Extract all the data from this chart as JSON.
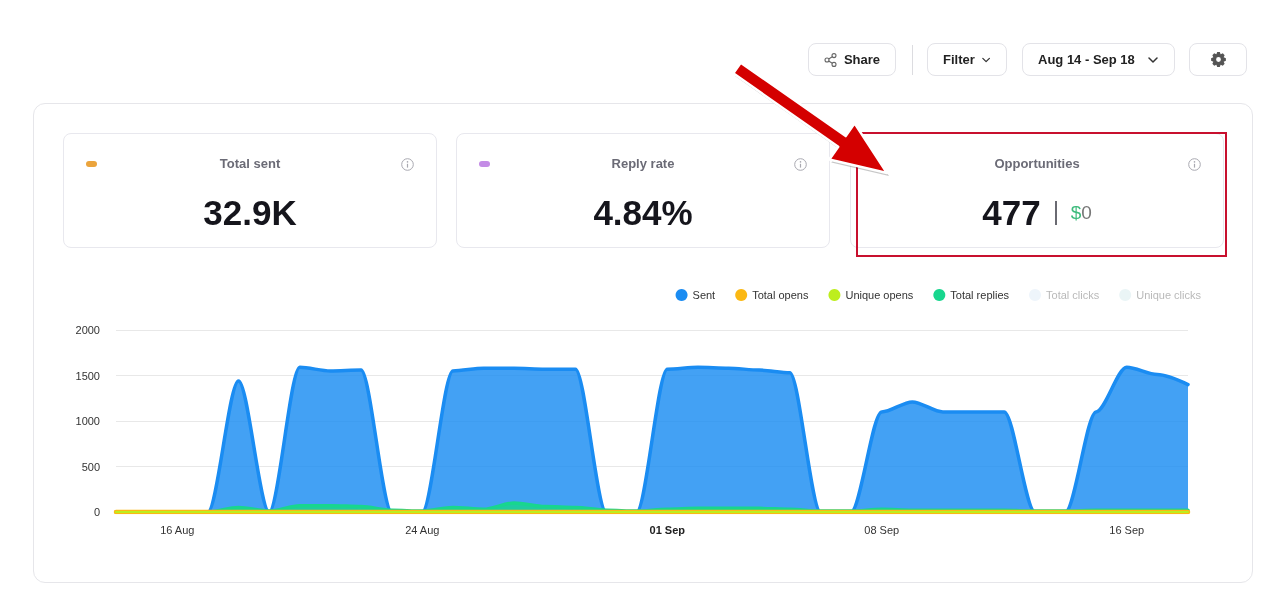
{
  "chart_data": [
    {
      "type": "other",
      "annotations": [
        "Share",
        "Filter",
        "Aug 14 - Sep 18"
      ]
    },
    {
      "type": "other",
      "title": "Total sent",
      "annotations": [
        "32.9K"
      ]
    },
    {
      "type": "other",
      "title": "Reply rate",
      "annotations": [
        "4.84%"
      ]
    },
    {
      "type": "other",
      "title": "Opportunities",
      "annotations": [
        "477",
        "$0"
      ]
    },
    {
      "type": "area",
      "x": [
        "--08-14",
        "--08-15",
        "--08-16",
        "--08-17",
        "--08-18",
        "--08-19",
        "--08-20",
        "--08-21",
        "--08-22",
        "--08-23",
        "--08-24",
        "--08-25",
        "--08-26",
        "--08-27",
        "--08-28",
        "--08-29",
        "--08-30",
        "--08-31",
        "--09-01",
        "--09-02",
        "--09-03",
        "--09-04",
        "--09-05",
        "--09-06",
        "--09-07",
        "--09-08",
        "--09-09",
        "--09-10",
        "--09-11",
        "--09-12",
        "--09-13",
        "--09-14",
        "--09-15",
        "--09-16",
        "--09-17",
        "--09-18"
      ],
      "series": [
        {
          "name": "Sent",
          "color": "#1a8cf2",
          "values": [
            0,
            0,
            0,
            0,
            1440,
            0,
            1590,
            1550,
            1560,
            0,
            0,
            1550,
            1580,
            1580,
            1570,
            1570,
            0,
            0,
            1570,
            1590,
            1580,
            1560,
            1530,
            0,
            0,
            1100,
            1210,
            1100,
            1100,
            1100,
            0,
            0,
            1100,
            1590,
            1510,
            1400
          ]
        },
        {
          "name": "Total opens",
          "type": "line",
          "color": "#fbb813",
          "values": [
            0,
            0,
            0,
            0,
            0,
            0,
            0,
            0,
            0,
            0,
            0,
            0,
            0,
            0,
            0,
            0,
            0,
            0,
            0,
            0,
            0,
            0,
            0,
            0,
            0,
            0,
            0,
            0,
            0,
            0,
            0,
            0,
            0,
            0,
            0,
            0
          ]
        },
        {
          "name": "Unique opens",
          "type": "line",
          "color": "#bdee1e",
          "values": [
            0,
            0,
            0,
            0,
            0,
            0,
            0,
            0,
            0,
            0,
            0,
            0,
            0,
            0,
            0,
            0,
            0,
            0,
            0,
            0,
            0,
            0,
            0,
            0,
            0,
            0,
            0,
            0,
            0,
            0,
            0,
            0,
            0,
            0,
            0,
            0
          ]
        },
        {
          "name": "Total replies",
          "color": "#18d68e",
          "values": [
            0,
            0,
            0,
            0,
            50,
            10,
            70,
            70,
            60,
            20,
            10,
            50,
            30,
            100,
            60,
            50,
            20,
            10,
            30,
            40,
            40,
            40,
            30,
            10,
            10,
            30,
            20,
            20,
            20,
            20,
            10,
            10,
            20,
            20,
            20,
            20
          ]
        },
        {
          "name": "Total clicks",
          "color": "#eef5fb",
          "values": [
            null,
            null,
            null,
            null,
            null,
            null,
            null,
            null,
            null,
            null,
            null,
            null,
            null,
            null,
            null,
            null,
            null,
            null,
            null,
            null,
            null,
            null,
            null,
            null,
            null,
            null,
            null,
            null,
            null,
            null,
            null,
            null,
            null,
            null,
            null,
            null
          ]
        },
        {
          "name": "Unique clicks",
          "color": "#eaf5f6",
          "values": [
            null,
            null,
            null,
            null,
            null,
            null,
            null,
            null,
            null,
            null,
            null,
            null,
            null,
            null,
            null,
            null,
            null,
            null,
            null,
            null,
            null,
            null,
            null,
            null,
            null,
            null,
            null,
            null,
            null,
            null,
            null,
            null,
            null,
            null,
            null,
            null
          ]
        }
      ],
      "xlim": [
        "--08-14",
        "--09-18"
      ],
      "xticks": [
        {
          "value": "--08-16",
          "label": "16 Aug"
        },
        {
          "value": "--08-24",
          "label": "24 Aug"
        },
        {
          "value": "--09-01",
          "label": "01 Sep"
        },
        {
          "value": "--09-08",
          "label": "08 Sep"
        },
        {
          "value": "--09-16",
          "label": "16 Sep"
        }
      ],
      "ylim": [
        0,
        2000
      ],
      "yticks": [
        0,
        500,
        1000,
        1500,
        2000
      ],
      "grid": "y",
      "legend": "top right"
    }
  ]
}
